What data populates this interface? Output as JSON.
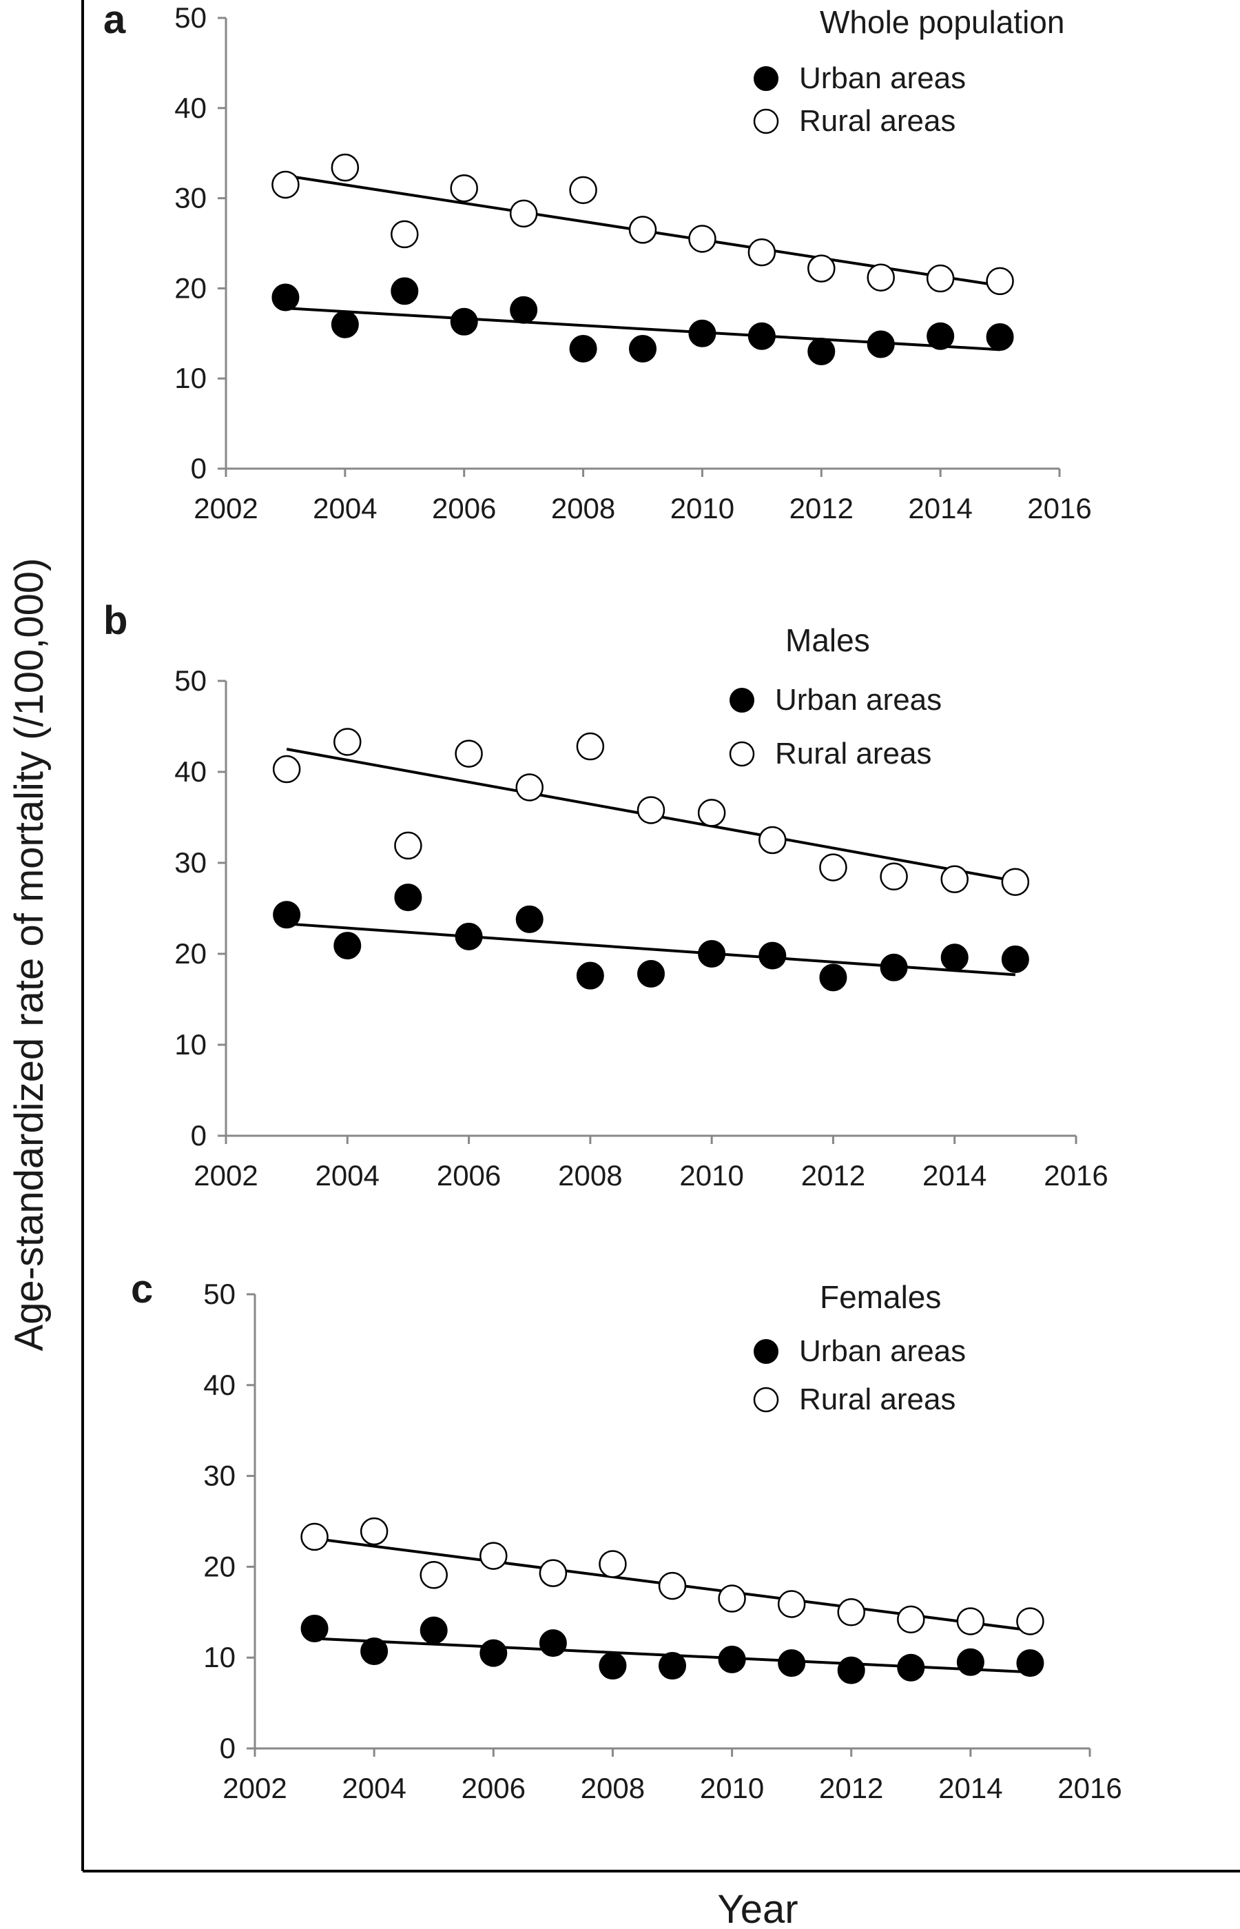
{
  "figure": {
    "ylabel": "Age-standardized rate of mortality (/100,000)",
    "xlabel": "Year"
  },
  "legend": {
    "urban": "Urban areas",
    "rural": "Rural areas"
  },
  "colors": {
    "urban_fill": "#000000",
    "rural_fill": "#ffffff",
    "line": "#000000"
  },
  "chart_data": [
    {
      "type": "scatter",
      "panel": "a",
      "title": "Whole population",
      "xlim": [
        2002,
        2016
      ],
      "ylim": [
        0,
        50
      ],
      "xticks": [
        2002,
        2004,
        2006,
        2008,
        2010,
        2012,
        2014,
        2016
      ],
      "yticks": [
        0,
        10,
        20,
        30,
        40,
        50
      ],
      "x": [
        2003,
        2004,
        2005,
        2006,
        2007,
        2008,
        2009,
        2010,
        2011,
        2012,
        2013,
        2014,
        2015
      ],
      "series": [
        {
          "name": "Urban areas",
          "marker": "filled-circle",
          "values": [
            19.0,
            16.0,
            19.7,
            16.3,
            17.6,
            13.3,
            13.3,
            15.0,
            14.7,
            13.0,
            13.8,
            14.7,
            14.6
          ],
          "trend": [
            17.8,
            13.2
          ]
        },
        {
          "name": "Rural areas",
          "marker": "open-circle",
          "values": [
            31.5,
            33.4,
            26.0,
            31.1,
            28.3,
            30.9,
            26.5,
            25.5,
            24.0,
            22.2,
            21.2,
            21.1,
            20.8
          ],
          "trend": [
            32.5,
            20.3
          ]
        }
      ]
    },
    {
      "type": "scatter",
      "panel": "b",
      "title": "Males",
      "xlim": [
        2002,
        2016
      ],
      "ylim": [
        0,
        50
      ],
      "xticks": [
        2002,
        2004,
        2006,
        2008,
        2010,
        2012,
        2014,
        2016
      ],
      "yticks": [
        0,
        10,
        20,
        30,
        40,
        50
      ],
      "x": [
        2003,
        2004,
        2005,
        2006,
        2007,
        2008,
        2009,
        2010,
        2011,
        2012,
        2013,
        2014,
        2015
      ],
      "series": [
        {
          "name": "Urban areas",
          "marker": "filled-circle",
          "values": [
            24.3,
            20.9,
            26.2,
            21.9,
            23.8,
            17.6,
            17.8,
            20.0,
            19.8,
            17.4,
            18.5,
            19.6,
            19.4
          ],
          "trend": [
            23.3,
            17.7
          ]
        },
        {
          "name": "Rural areas",
          "marker": "open-circle",
          "values": [
            40.3,
            43.3,
            31.9,
            42.0,
            38.3,
            42.8,
            35.8,
            35.5,
            32.5,
            29.5,
            28.5,
            28.2,
            27.9
          ],
          "trend": [
            42.5,
            28.0
          ]
        }
      ]
    },
    {
      "type": "scatter",
      "panel": "c",
      "title": "Females",
      "xlim": [
        2002,
        2016
      ],
      "ylim": [
        0,
        50
      ],
      "xticks": [
        2002,
        2004,
        2006,
        2008,
        2010,
        2012,
        2014,
        2016
      ],
      "yticks": [
        0,
        10,
        20,
        30,
        40,
        50
      ],
      "x": [
        2003,
        2004,
        2005,
        2006,
        2007,
        2008,
        2009,
        2010,
        2011,
        2012,
        2013,
        2014,
        2015
      ],
      "series": [
        {
          "name": "Urban areas",
          "marker": "filled-circle",
          "values": [
            13.2,
            10.7,
            13.0,
            10.5,
            11.6,
            9.1,
            9.1,
            9.8,
            9.4,
            8.6,
            8.9,
            9.5,
            9.4
          ],
          "trend": [
            12.1,
            8.4
          ]
        },
        {
          "name": "Rural areas",
          "marker": "open-circle",
          "values": [
            23.3,
            23.9,
            19.1,
            21.2,
            19.3,
            20.3,
            17.9,
            16.5,
            15.9,
            15.0,
            14.2,
            14.0,
            14.0
          ],
          "trend": [
            23.1,
            13.0
          ]
        }
      ]
    }
  ]
}
